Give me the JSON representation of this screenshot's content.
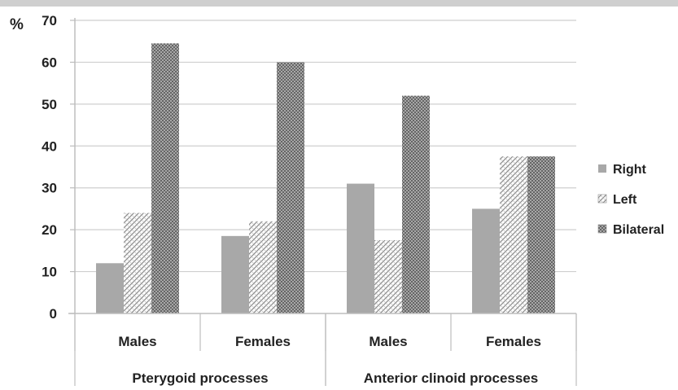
{
  "chart_data": {
    "type": "bar",
    "ylabel": "%",
    "ylim": [
      0,
      70
    ],
    "yticks": [
      0,
      10,
      20,
      30,
      40,
      50,
      60,
      70
    ],
    "groups": [
      {
        "label": "Pterygoid processes",
        "categories": [
          "Males",
          "Females"
        ]
      },
      {
        "label": "Anterior clinoid processes",
        "categories": [
          "Males",
          "Females"
        ]
      }
    ],
    "categories": [
      "Males",
      "Females",
      "Males",
      "Females"
    ],
    "series": [
      {
        "name": "Right",
        "values": [
          12,
          18.5,
          31,
          25
        ]
      },
      {
        "name": "Left",
        "values": [
          24,
          22,
          17.5,
          37.5
        ]
      },
      {
        "name": "Bilateral",
        "values": [
          64.5,
          60,
          52,
          37.5
        ]
      }
    ],
    "legend_position": "right",
    "grid": true
  }
}
